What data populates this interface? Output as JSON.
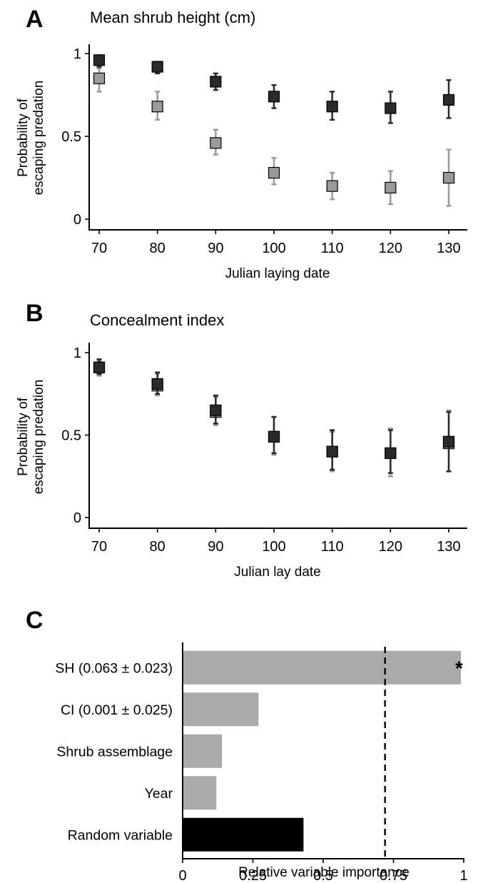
{
  "chart_data": [
    {
      "panel": "A",
      "title": "Mean shrub height (cm)",
      "type": "scatter",
      "xlabel": "Julian laying date",
      "ylabel": [
        "Probability of",
        "escaping predation"
      ],
      "xlim": [
        70,
        130
      ],
      "ylim": [
        0,
        1
      ],
      "xticks": [
        "70",
        "80",
        "90",
        "100",
        "110",
        "120",
        "130"
      ],
      "yticks": [
        "0",
        "0.5",
        "1"
      ],
      "grid": false,
      "series": [
        {
          "color": "#2a2a2a",
          "x": [
            70,
            80,
            90,
            100,
            110,
            120,
            130
          ],
          "y": [
            0.96,
            0.92,
            0.83,
            0.74,
            0.68,
            0.67,
            0.72
          ],
          "err_low": [
            0.92,
            0.88,
            0.78,
            0.67,
            0.6,
            0.58,
            0.61
          ],
          "err_high": [
            0.99,
            0.95,
            0.88,
            0.81,
            0.77,
            0.77,
            0.84
          ]
        },
        {
          "color": "#9a9a9a",
          "x": [
            70,
            80,
            90,
            100,
            110,
            120,
            130
          ],
          "y": [
            0.85,
            0.68,
            0.46,
            0.28,
            0.2,
            0.19,
            0.25
          ],
          "err_low": [
            0.77,
            0.6,
            0.39,
            0.21,
            0.12,
            0.09,
            0.08
          ],
          "err_high": [
            0.91,
            0.77,
            0.54,
            0.37,
            0.28,
            0.29,
            0.42
          ]
        }
      ]
    },
    {
      "panel": "B",
      "title": "Concealment index",
      "type": "scatter",
      "xlabel": "Julian lay date",
      "ylabel": [
        "Probability of",
        "escaping predation"
      ],
      "xlim": [
        70,
        130
      ],
      "ylim": [
        0,
        1
      ],
      "xticks": [
        "70",
        "80",
        "90",
        "100",
        "110",
        "120",
        "130"
      ],
      "yticks": [
        "0",
        "0.5",
        "1"
      ],
      "grid": false,
      "series": [
        {
          "color": "#2a2a2a",
          "x": [
            70,
            80,
            90,
            100,
            110,
            120,
            130
          ],
          "y": [
            0.91,
            0.81,
            0.65,
            0.49,
            0.4,
            0.39,
            0.46
          ],
          "err_low": [
            0.87,
            0.75,
            0.57,
            0.39,
            0.29,
            0.27,
            0.28
          ],
          "err_high": [
            0.96,
            0.88,
            0.74,
            0.61,
            0.53,
            0.53,
            0.64
          ]
        },
        {
          "color": "#9a9a9a",
          "x": [
            70,
            80,
            90,
            100,
            110,
            120,
            130
          ],
          "y": [
            0.91,
            0.8,
            0.64,
            0.49,
            0.4,
            0.39,
            0.45
          ],
          "err_low": [
            0.86,
            0.74,
            0.56,
            0.38,
            0.28,
            0.25,
            0.28
          ],
          "err_high": [
            0.95,
            0.87,
            0.73,
            0.61,
            0.52,
            0.54,
            0.65
          ]
        }
      ]
    },
    {
      "panel": "C",
      "type": "bar",
      "orientation": "horizontal",
      "xlabel": "Relative variable importance",
      "xlim": [
        0,
        1
      ],
      "xticks": [
        "0",
        "0.25",
        "0.5",
        "0.75",
        "1"
      ],
      "categories": [
        "SH (0.063 ± 0.023)",
        "CI (0.001 ± 0.025)",
        "Shrub assemblage",
        "Year",
        "Random variable"
      ],
      "values": [
        0.99,
        0.27,
        0.14,
        0.12,
        0.43
      ],
      "colors": [
        "#aaaaaa",
        "#aaaaaa",
        "#aaaaaa",
        "#aaaaaa",
        "#000000"
      ],
      "threshold": 0.72,
      "significance_marker": "*",
      "significance_index": 0
    }
  ]
}
